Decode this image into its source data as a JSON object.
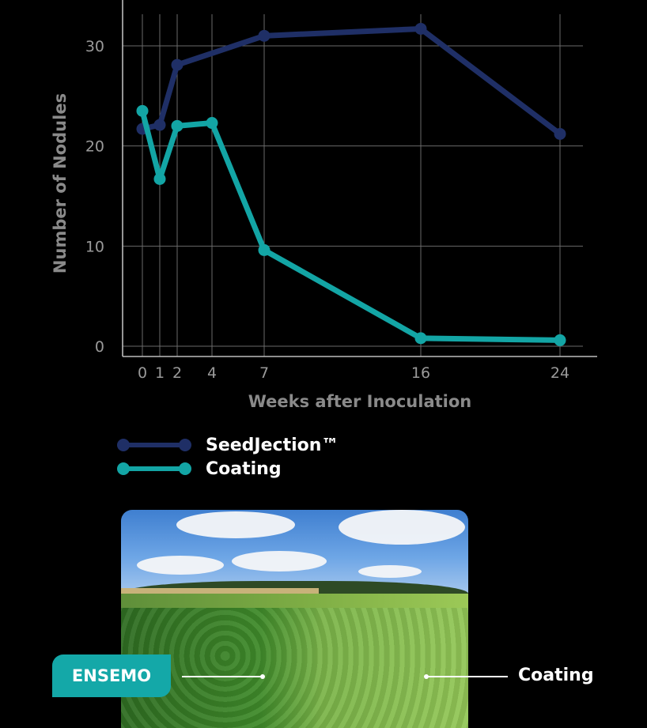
{
  "chart_data": {
    "type": "line",
    "xlabel": "Weeks after Inoculation",
    "ylabel": "Number of Nodules",
    "x_ticks": [
      0,
      1,
      2,
      4,
      7,
      16,
      24
    ],
    "y_ticks": [
      0,
      10,
      20,
      30
    ],
    "xlim": [
      -1.2,
      25.5
    ],
    "ylim": [
      -0.5,
      34
    ],
    "grid": true,
    "series": [
      {
        "name": "SeedJection™",
        "color": "#1f2f66",
        "x": [
          0,
          1,
          2,
          7,
          16,
          24
        ],
        "y": [
          21.7,
          22.1,
          28.1,
          31.0,
          31.7,
          21.2
        ]
      },
      {
        "name": "Coating",
        "color": "#13a5a5",
        "x": [
          0,
          1,
          2,
          4,
          7,
          16,
          24
        ],
        "y": [
          23.5,
          16.7,
          22.0,
          22.3,
          9.6,
          0.8,
          0.6
        ]
      }
    ]
  },
  "legend": {
    "items": [
      {
        "label": "SeedJection™",
        "color": "#1f2f66"
      },
      {
        "label": "Coating",
        "color": "#13a5a5"
      }
    ]
  },
  "photo": {
    "badge_label": "ENSEMO",
    "right_label": "Coating"
  }
}
